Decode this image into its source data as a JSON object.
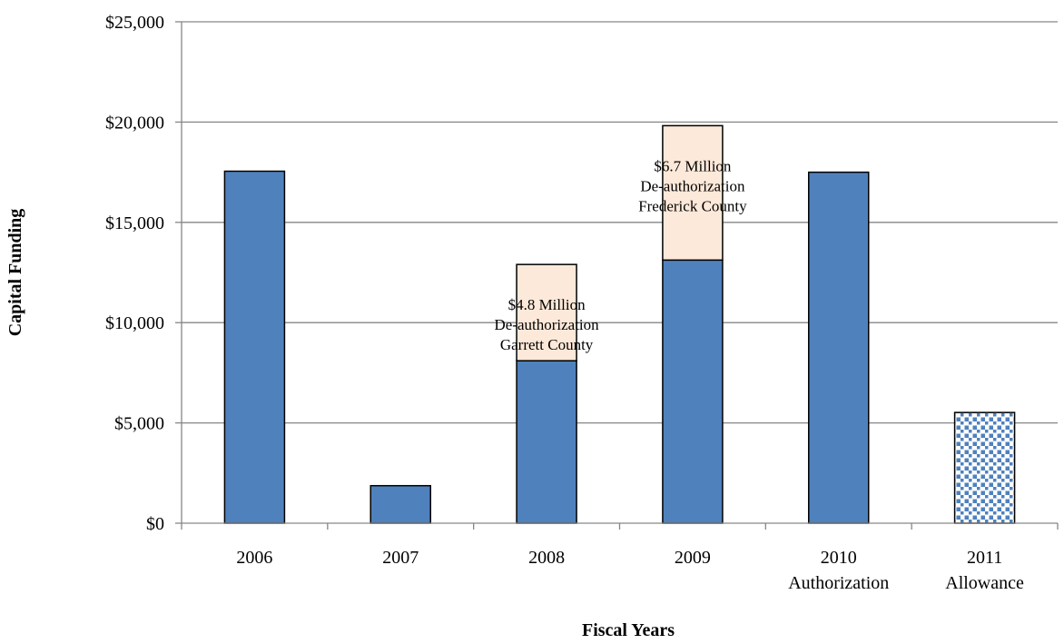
{
  "chart_data": {
    "type": "bar",
    "stacked": true,
    "categories": [
      [
        "2006"
      ],
      [
        "2007"
      ],
      [
        "2008"
      ],
      [
        "2009"
      ],
      [
        "2010",
        "Authorization"
      ],
      [
        "2011",
        "Allowance"
      ]
    ],
    "series": [
      {
        "values": [
          17550,
          1870,
          8100,
          13120,
          17500,
          5520
        ],
        "color": "#4f81bd",
        "pattern_last_category": "dotted"
      },
      {
        "values": [
          0,
          0,
          4800,
          6700,
          0,
          0
        ],
        "color": "#fde9d9"
      }
    ],
    "annotations": [
      {
        "category_index": 2,
        "lines": [
          "$4.8 Million",
          "De-authorization",
          "Garrett County"
        ]
      },
      {
        "category_index": 3,
        "lines": [
          "$6.7 Million",
          "De-authorization",
          "Frederick County"
        ]
      }
    ],
    "xlabel": "Fiscal Years",
    "ylabel": "Capital Funding",
    "ylim": [
      0,
      25000
    ],
    "yticks": [
      0,
      5000,
      10000,
      15000,
      20000,
      25000
    ],
    "ytick_labels": [
      "$0",
      "$5,000",
      "$10,000",
      "$15,000",
      "$20,000",
      "$25,000"
    ],
    "grid": true,
    "legend": "none"
  }
}
